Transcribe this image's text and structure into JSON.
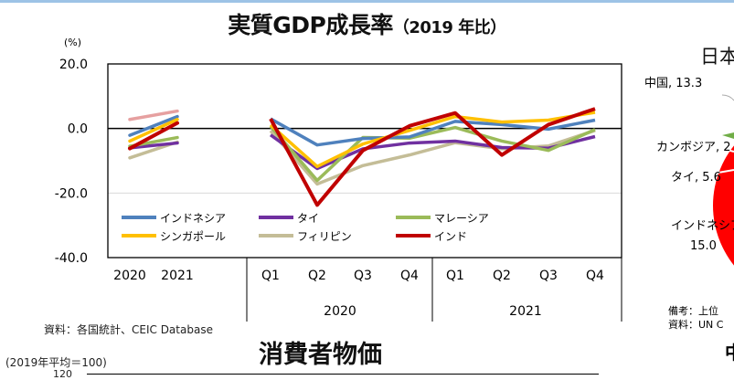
{
  "header": {
    "title": "実質GDP成長率",
    "title_suffix": "（2019 年比）"
  },
  "chart_data": {
    "type": "line",
    "title": "実質GDP成長率（2019 年比）",
    "ylabel": "(%)",
    "ylim": [
      -40,
      20
    ],
    "yticks": [
      "20.0",
      "0.0",
      "-20.0",
      "-40.0"
    ],
    "grid": true,
    "legend_placement": "lower-left inside",
    "annual_categories": [
      "2020",
      "2021"
    ],
    "quarter_categories": [
      "Q1",
      "Q2",
      "Q3",
      "Q4",
      "Q1",
      "Q2",
      "Q3",
      "Q4"
    ],
    "year_groups": [
      "2020",
      "2021"
    ],
    "series": [
      {
        "name": "インドネシア",
        "color": "#4f81bd",
        "annual": [
          -2.1,
          3.7
        ],
        "quarterly": [
          3.0,
          -5.1,
          -3.1,
          -2.6,
          2.2,
          1.2,
          -0.2,
          2.6
        ]
      },
      {
        "name": "タイ",
        "color": "#7030a0",
        "annual": [
          -6.0,
          -4.5
        ],
        "quarterly": [
          -2.0,
          -12.4,
          -6.3,
          -4.5,
          -3.9,
          -5.9,
          -6.1,
          -2.5
        ]
      },
      {
        "name": "マレーシア",
        "color": "#9bbb59",
        "annual": [
          -5.5,
          -2.8
        ],
        "quarterly": [
          0.7,
          -16.1,
          -2.8,
          -3.0,
          0.3,
          -3.9,
          -6.8,
          -0.3
        ]
      },
      {
        "name": "シンガポール",
        "color": "#ffc000",
        "annual": [
          -3.9,
          2.8
        ],
        "quarterly": [
          1.1,
          -11.8,
          -4.8,
          -0.6,
          3.7,
          2.0,
          2.6,
          5.0
        ]
      },
      {
        "name": "フィリピン",
        "color": "#c4bd97",
        "annual": [
          -9.1,
          -4.2
        ],
        "quarterly": [
          -0.7,
          -17.2,
          -11.5,
          -8.2,
          -4.4,
          -6.3,
          -5.4,
          -0.6
        ]
      },
      {
        "name": "インド",
        "color": "#c00000",
        "annual": [
          -6.2,
          1.7
        ],
        "quarterly": [
          3.0,
          -23.7,
          -6.8,
          0.8,
          4.8,
          -8.2,
          1.2,
          6.1
        ]
      },
      {
        "color": "#e6a0a0",
        "annual": [
          2.8,
          5.4
        ]
      }
    ]
  },
  "source_note": "資料：各国統計、CEIC Database",
  "next_section": {
    "title": "消費者物価",
    "unit": "(2019年平均＝100)",
    "first_tick": "120"
  },
  "right_panel": {
    "title_fragment": "日本",
    "labels": [
      "中国, 13.3",
      "カンボジア, 2",
      "タイ, 5.6",
      "インドネシア",
      "15.0"
    ],
    "notes": [
      "備考：上位",
      "資料：UN C"
    ],
    "fragment": "中",
    "pie_color": "#ff0000",
    "slice_green": "#70ad47"
  }
}
